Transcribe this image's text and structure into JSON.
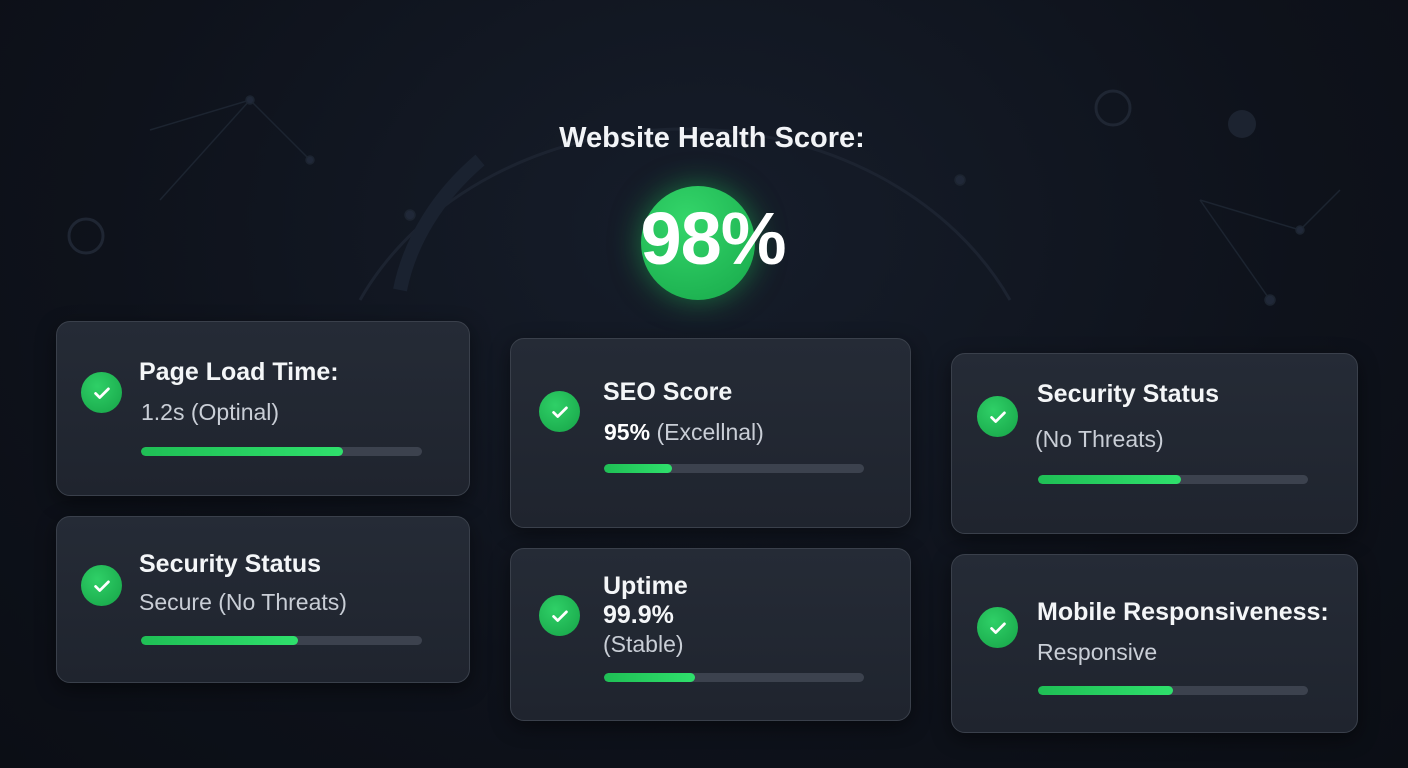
{
  "header": {
    "title": "Website Health Score:",
    "score": "98%",
    "score_value": 98
  },
  "colors": {
    "accent": "#22c55e",
    "background": "#0e121b",
    "card": "#232833",
    "track": "#3c424e"
  },
  "cards": [
    {
      "title": "Page Load Time:",
      "subtitle": "1.2s (Optinal)",
      "progress": 0.72,
      "icon": "check-circle-icon"
    },
    {
      "title": "Security Status",
      "subtitle": "Secure (No Threats)",
      "progress": 0.56,
      "icon": "check-circle-icon"
    },
    {
      "title": "SEO Score",
      "value": "95%",
      "subtitle": "(Excellnal)",
      "progress": 0.26,
      "icon": "check-circle-icon"
    },
    {
      "title": "Uptime",
      "value": "99.9%",
      "subtitle": "(Stable)",
      "progress": 0.35,
      "icon": "check-circle-icon"
    },
    {
      "title": "Security Status",
      "subtitle": "(No Threats)",
      "progress": 0.53,
      "icon": "check-circle-icon"
    },
    {
      "title": "Mobile Responsiveness:",
      "subtitle": "Responsive",
      "progress": 0.5,
      "icon": "check-circle-icon"
    }
  ]
}
